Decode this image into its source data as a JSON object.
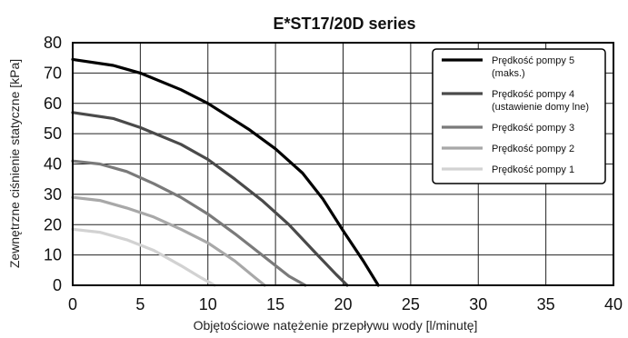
{
  "chart_data": {
    "type": "line",
    "title": "E*ST17/20D series",
    "xlabel": "Objętościowe natężenie przepływu wody [l/minutę]",
    "ylabel": "Zewnętrzne ciśnienie statyczne [kPa]",
    "xlim": [
      0,
      40
    ],
    "ylim": [
      0,
      80
    ],
    "xticks": [
      "0",
      "5",
      "10",
      "15",
      "20",
      "25",
      "30",
      "35",
      "40"
    ],
    "yticks": [
      "0",
      "10",
      "20",
      "30",
      "40",
      "50",
      "60",
      "70",
      "80"
    ],
    "grid": true,
    "legend_position": "top-right",
    "series": [
      {
        "name": "Prędkość pompy 5",
        "name_line2": "(maks.)",
        "color": "#000000",
        "x": [
          0,
          3,
          5,
          8,
          10,
          13,
          15,
          17,
          18.5,
          20,
          21.5,
          22.6
        ],
        "y": [
          74.5,
          72.5,
          70,
          64.5,
          60,
          51.5,
          45,
          37,
          28.5,
          18,
          8,
          0
        ]
      },
      {
        "name": "Prędkość pompy 4",
        "name_line2": "(ustawienie domy lne)",
        "color": "#4a4a4a",
        "x": [
          0,
          3,
          5,
          8,
          10,
          12,
          14,
          16,
          18,
          19.5,
          20.3
        ],
        "y": [
          57,
          55,
          52,
          46.5,
          41.5,
          35,
          28,
          20,
          10.5,
          3.5,
          0
        ]
      },
      {
        "name": "Prędkość pompy 3",
        "name_line2": "",
        "color": "#7a7a7a",
        "x": [
          0,
          2,
          4,
          6,
          8,
          10,
          12,
          14,
          16,
          17.2
        ],
        "y": [
          41,
          40,
          37.5,
          33.5,
          29,
          23.5,
          17,
          10,
          3,
          0
        ]
      },
      {
        "name": "Prędkość pompy 2",
        "name_line2": "",
        "color": "#a8a8a8",
        "x": [
          0,
          2,
          4,
          6,
          8,
          10,
          12,
          13.5,
          14.2
        ],
        "y": [
          29,
          28,
          25.5,
          22.5,
          18.5,
          14,
          8,
          2.5,
          0
        ]
      },
      {
        "name": "Prędkość pompy 1",
        "name_line2": "",
        "color": "#d2d2d2",
        "x": [
          0,
          2,
          4,
          6,
          8,
          9.5,
          10.5
        ],
        "y": [
          18.5,
          17.5,
          15,
          11.5,
          6.5,
          2.5,
          0
        ]
      }
    ]
  }
}
